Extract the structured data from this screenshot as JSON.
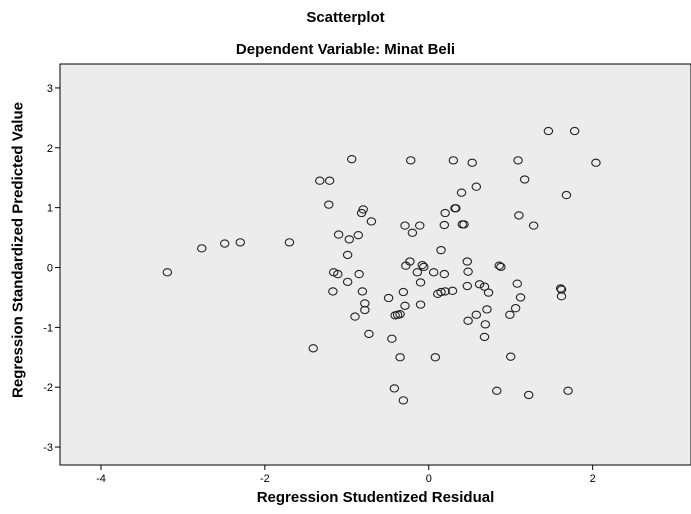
{
  "chart_data": {
    "type": "scatter",
    "title": "Scatterplot",
    "subtitle": "Dependent Variable: Minat Beli",
    "xlabel": "Regression Studentized Residual",
    "ylabel": "Regression Standardized Predicted Value",
    "xlim": [
      -4.5,
      3.2
    ],
    "ylim": [
      -3.3,
      3.4
    ],
    "xticks": [
      -4,
      -2,
      0,
      2
    ],
    "yticks": [
      3,
      2,
      1,
      0,
      -1,
      -2,
      -3
    ],
    "xtick_labels": [
      "-4",
      "-2",
      "0",
      "2"
    ],
    "ytick_labels": [
      "3",
      "2",
      "1",
      "0",
      "-1",
      "-2",
      "-3"
    ],
    "grid": false,
    "marker": "open-circle",
    "plot_background": "#ececec",
    "points": [
      [
        1.46,
        2.28
      ],
      [
        1.78,
        2.28
      ],
      [
        -0.94,
        1.81
      ],
      [
        -0.22,
        1.79
      ],
      [
        0.3,
        1.79
      ],
      [
        0.53,
        1.75
      ],
      [
        1.09,
        1.79
      ],
      [
        2.04,
        1.75
      ],
      [
        -1.33,
        1.45
      ],
      [
        -1.21,
        1.45
      ],
      [
        0.58,
        1.35
      ],
      [
        1.17,
        1.47
      ],
      [
        0.4,
        1.25
      ],
      [
        1.68,
        1.21
      ],
      [
        -1.22,
        1.05
      ],
      [
        0.32,
        0.99
      ],
      [
        0.33,
        0.99
      ],
      [
        0.41,
        0.72
      ],
      [
        0.43,
        0.72
      ],
      [
        -0.8,
        0.97
      ],
      [
        -0.82,
        0.91
      ],
      [
        -0.7,
        0.77
      ],
      [
        0.2,
        0.91
      ],
      [
        1.1,
        0.87
      ],
      [
        -0.29,
        0.7
      ],
      [
        -0.11,
        0.7
      ],
      [
        0.19,
        0.71
      ],
      [
        1.28,
        0.7
      ],
      [
        -1.1,
        0.55
      ],
      [
        -0.86,
        0.54
      ],
      [
        -0.97,
        0.47
      ],
      [
        -0.2,
        0.58
      ],
      [
        0.15,
        0.29
      ],
      [
        -0.99,
        0.21
      ],
      [
        -2.77,
        0.32
      ],
      [
        -2.49,
        0.4
      ],
      [
        -2.3,
        0.42
      ],
      [
        -1.7,
        0.42
      ],
      [
        -3.19,
        -0.08
      ],
      [
        -1.16,
        -0.08
      ],
      [
        -1.11,
        -0.11
      ],
      [
        -0.85,
        -0.11
      ],
      [
        -0.99,
        -0.24
      ],
      [
        -0.28,
        0.03
      ],
      [
        -0.23,
        0.1
      ],
      [
        -0.08,
        0.04
      ],
      [
        -0.06,
        0.01
      ],
      [
        0.06,
        -0.08
      ],
      [
        0.47,
        0.1
      ],
      [
        0.48,
        -0.07
      ],
      [
        0.19,
        -0.11
      ],
      [
        -0.14,
        -0.08
      ],
      [
        0.86,
        0.03
      ],
      [
        0.88,
        0.01
      ],
      [
        -0.1,
        -0.25
      ],
      [
        0.62,
        -0.28
      ],
      [
        0.68,
        -0.32
      ],
      [
        1.08,
        -0.27
      ],
      [
        -1.17,
        -0.4
      ],
      [
        -0.81,
        -0.4
      ],
      [
        -0.49,
        -0.51
      ],
      [
        -0.31,
        -0.41
      ],
      [
        0.11,
        -0.44
      ],
      [
        0.15,
        -0.41
      ],
      [
        0.2,
        -0.4
      ],
      [
        0.29,
        -0.39
      ],
      [
        0.47,
        -0.31
      ],
      [
        0.73,
        -0.42
      ],
      [
        1.12,
        -0.5
      ],
      [
        1.61,
        -0.35
      ],
      [
        1.62,
        -0.37
      ],
      [
        1.62,
        -0.48
      ],
      [
        -0.78,
        -0.6
      ],
      [
        -0.78,
        -0.71
      ],
      [
        -0.9,
        -0.82
      ],
      [
        -0.29,
        -0.64
      ],
      [
        -0.1,
        -0.62
      ],
      [
        -0.41,
        -0.8
      ],
      [
        -0.38,
        -0.79
      ],
      [
        -0.35,
        -0.78
      ],
      [
        0.58,
        -0.79
      ],
      [
        0.71,
        -0.7
      ],
      [
        0.48,
        -0.89
      ],
      [
        0.69,
        -0.95
      ],
      [
        0.99,
        -0.79
      ],
      [
        1.06,
        -0.68
      ],
      [
        -0.73,
        -1.11
      ],
      [
        -0.45,
        -1.19
      ],
      [
        0.68,
        -1.16
      ],
      [
        -1.41,
        -1.35
      ],
      [
        -0.35,
        -1.5
      ],
      [
        0.08,
        -1.5
      ],
      [
        1.0,
        -1.49
      ],
      [
        -0.42,
        -2.02
      ],
      [
        -0.31,
        -2.22
      ],
      [
        0.83,
        -2.06
      ],
      [
        1.22,
        -2.13
      ],
      [
        1.7,
        -2.06
      ]
    ]
  }
}
